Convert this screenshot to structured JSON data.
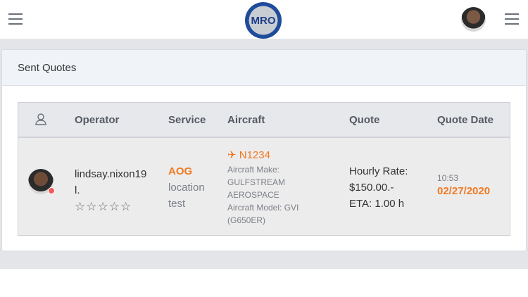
{
  "header": {
    "logo_text": "MRO",
    "menu_icon": "hamburger-icon"
  },
  "card": {
    "title": "Sent Quotes"
  },
  "table": {
    "columns": [
      "Operator",
      "Service",
      "Aircraft",
      "Quote",
      "Quote Date"
    ],
    "rows": [
      {
        "operator": "lindsay.nixon19",
        "operator_suffix": "l.",
        "rating": 0,
        "rating_max": 5,
        "stars": "☆☆☆☆☆",
        "service": "AOG",
        "service_note1": "location",
        "service_note2": "test",
        "tail": "N1234",
        "make_label": "Aircraft Make:",
        "make1": "GULFSTREAM",
        "make2": "AEROSPACE",
        "model": "Aircraft Model: GVI",
        "model2": "(G650ER)",
        "quote1": "Hourly Rate:",
        "quote2": "$150.00.-",
        "quote3": "ETA: 1.00 h",
        "time": "10:53",
        "date": "02/27/2020",
        "status_color": "#f25b5b"
      }
    ]
  },
  "colors": {
    "accent": "#f07a23"
  }
}
